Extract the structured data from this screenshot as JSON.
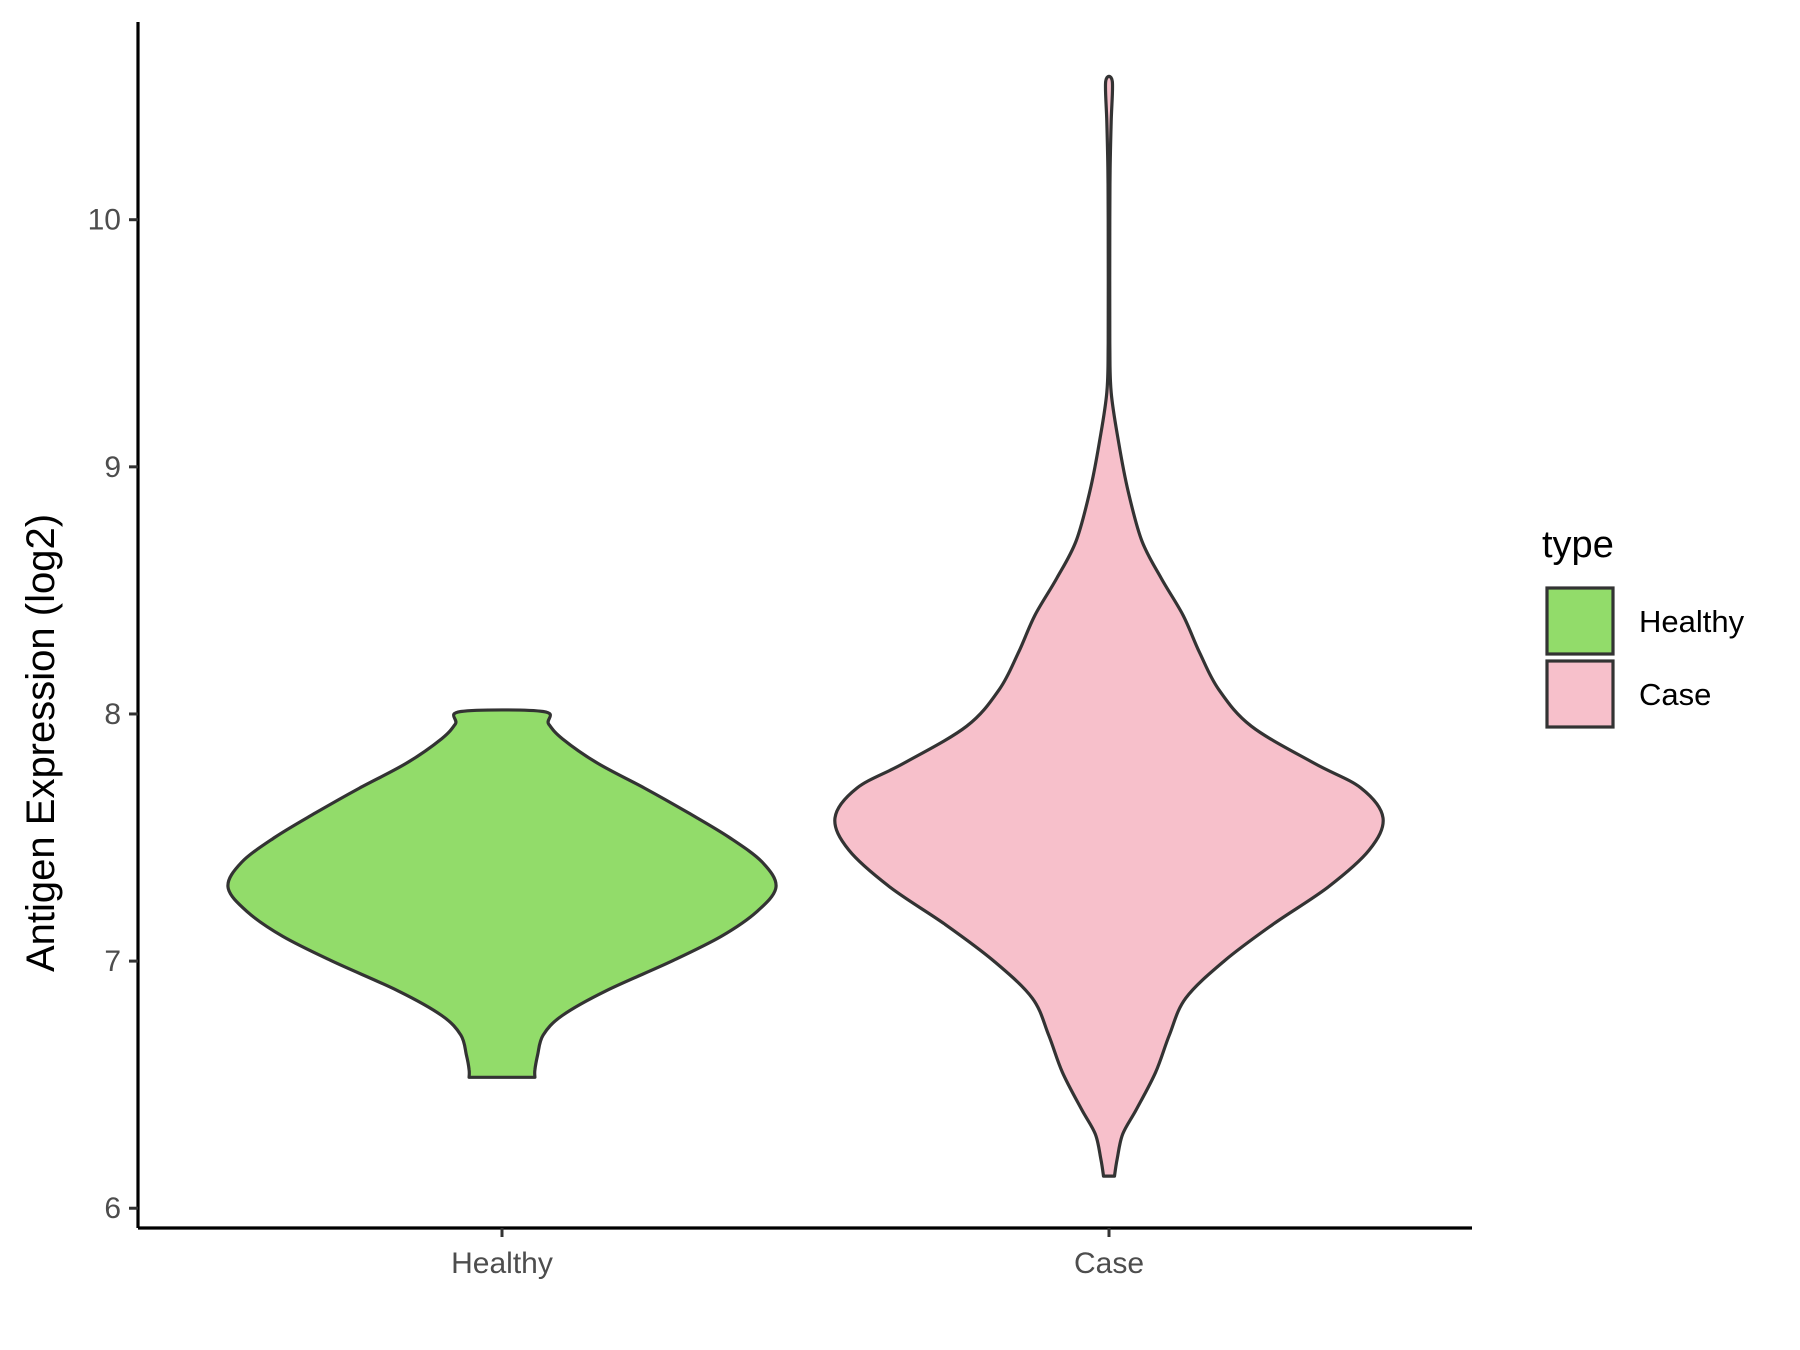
{
  "chart_data": {
    "type": "violin",
    "title": "",
    "xlabel": "",
    "ylabel": "Antigen Expression (log2)",
    "ylim": [
      5.92,
      10.8
    ],
    "yticks": [
      6,
      7,
      8,
      9,
      10
    ],
    "categories": [
      "Healthy",
      "Case"
    ],
    "grid": false,
    "legend": {
      "title": "type",
      "placement": "right",
      "entries": [
        {
          "label": "Healthy",
          "color": "#92dc6a"
        },
        {
          "label": "Case",
          "color": "#f7c0cb"
        }
      ]
    },
    "series": [
      {
        "category": "Healthy",
        "color": "#92dc6a",
        "min": 6.53,
        "max": 8.01,
        "density_profile": [
          [
            6.53,
            0.12
          ],
          [
            6.56,
            0.12
          ],
          [
            6.62,
            0.13
          ],
          [
            6.7,
            0.15
          ],
          [
            6.78,
            0.22
          ],
          [
            6.88,
            0.38
          ],
          [
            7.0,
            0.62
          ],
          [
            7.1,
            0.8
          ],
          [
            7.2,
            0.93
          ],
          [
            7.3,
            1.0
          ],
          [
            7.4,
            0.95
          ],
          [
            7.5,
            0.83
          ],
          [
            7.6,
            0.68
          ],
          [
            7.7,
            0.52
          ],
          [
            7.8,
            0.35
          ],
          [
            7.9,
            0.22
          ],
          [
            7.96,
            0.17
          ],
          [
            8.01,
            0.15
          ]
        ]
      },
      {
        "category": "Case",
        "color": "#f7c0cb",
        "min": 6.13,
        "max": 10.56,
        "density_profile": [
          [
            6.13,
            0.02
          ],
          [
            6.2,
            0.03
          ],
          [
            6.3,
            0.05
          ],
          [
            6.4,
            0.1
          ],
          [
            6.55,
            0.17
          ],
          [
            6.7,
            0.22
          ],
          [
            6.85,
            0.28
          ],
          [
            7.0,
            0.42
          ],
          [
            7.15,
            0.6
          ],
          [
            7.3,
            0.8
          ],
          [
            7.45,
            0.95
          ],
          [
            7.58,
            1.0
          ],
          [
            7.7,
            0.92
          ],
          [
            7.8,
            0.75
          ],
          [
            7.95,
            0.52
          ],
          [
            8.1,
            0.4
          ],
          [
            8.25,
            0.33
          ],
          [
            8.4,
            0.27
          ],
          [
            8.55,
            0.19
          ],
          [
            8.7,
            0.12
          ],
          [
            8.9,
            0.07
          ],
          [
            9.1,
            0.035
          ],
          [
            9.3,
            0.008
          ],
          [
            9.5,
            0.003
          ],
          [
            10.0,
            0.003
          ],
          [
            10.2,
            0.004
          ],
          [
            10.4,
            0.008
          ],
          [
            10.56,
            0.012
          ]
        ]
      }
    ]
  }
}
